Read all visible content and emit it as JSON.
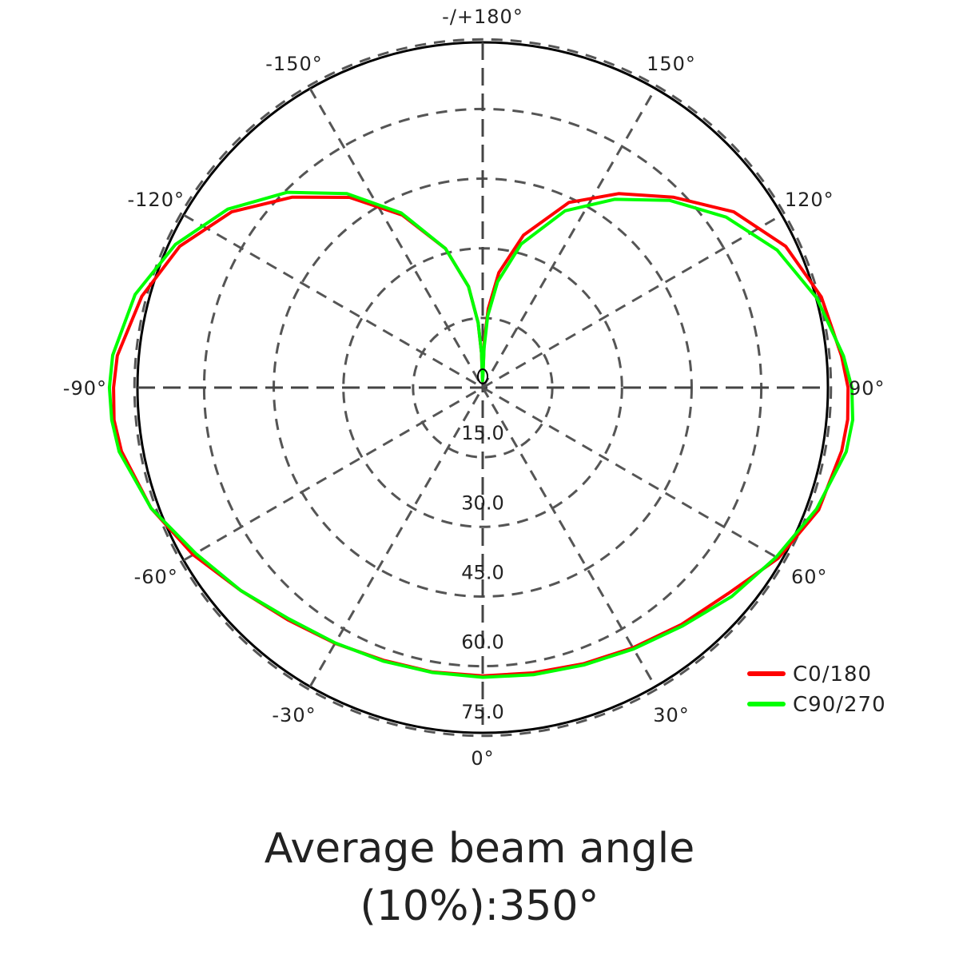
{
  "chart_data": {
    "type": "polar",
    "radial_unit": "",
    "radial_max": 90,
    "radial_ticks": [
      15,
      30,
      45,
      60,
      75
    ],
    "radial_tick_labels": [
      "15.0",
      "30.0",
      "45.0",
      "60.0",
      "75.0"
    ],
    "angle_ticks": [
      {
        "angle": 0,
        "label": "0°"
      },
      {
        "angle": 30,
        "label": "30°"
      },
      {
        "angle": 60,
        "label": "60°"
      },
      {
        "angle": 90,
        "label": "90°"
      },
      {
        "angle": 120,
        "label": "120°"
      },
      {
        "angle": 150,
        "label": "150°"
      },
      {
        "angle": 180,
        "label": "-/+180°"
      },
      {
        "angle": -150,
        "label": "-150°"
      },
      {
        "angle": -120,
        "label": "-120°"
      },
      {
        "angle": -90,
        "label": "-90°"
      },
      {
        "angle": -60,
        "label": "-60°"
      },
      {
        "angle": -30,
        "label": "-30°"
      }
    ],
    "legend_position": "bottom-right",
    "series": [
      {
        "name": "C0/180",
        "color": "#ff0000",
        "points": [
          [
            -179,
            1.5
          ],
          [
            -178,
            7.5
          ],
          [
            -176,
            14
          ],
          [
            -172,
            22
          ],
          [
            -165,
            31
          ],
          [
            -155,
            41
          ],
          [
            -145,
            50
          ],
          [
            -135,
            58
          ],
          [
            -125,
            66
          ],
          [
            -115,
            72
          ],
          [
            -105,
            76
          ],
          [
            -95,
            79
          ],
          [
            -90,
            79.5
          ],
          [
            -85,
            79.7
          ],
          [
            -80,
            79
          ],
          [
            -70,
            76
          ],
          [
            -60,
            72
          ],
          [
            -50,
            68
          ],
          [
            -40,
            65.3
          ],
          [
            -30,
            63.6
          ],
          [
            -20,
            62.5
          ],
          [
            -10,
            62.2
          ],
          [
            0,
            62.1
          ],
          [
            10,
            62.4
          ],
          [
            20,
            63.3
          ],
          [
            30,
            64.7
          ],
          [
            40,
            66.6
          ],
          [
            50,
            69
          ],
          [
            60,
            73.5
          ],
          [
            70,
            77
          ],
          [
            80,
            78.5
          ],
          [
            85,
            78.9
          ],
          [
            90,
            78.7
          ],
          [
            95,
            77.6
          ],
          [
            105,
            75.5
          ],
          [
            115,
            72
          ],
          [
            125,
            66
          ],
          [
            135,
            58
          ],
          [
            145,
            51
          ],
          [
            155,
            44
          ],
          [
            165,
            34
          ],
          [
            172,
            25
          ],
          [
            176,
            17
          ],
          [
            178,
            10
          ],
          [
            179,
            3
          ]
        ]
      },
      {
        "name": "C90/270",
        "color": "#00ff00",
        "points": [
          [
            -179,
            1.5
          ],
          [
            -178,
            7.5
          ],
          [
            -176,
            14
          ],
          [
            -172,
            22
          ],
          [
            -165,
            31
          ],
          [
            -155,
            41.5
          ],
          [
            -145,
            51
          ],
          [
            -135,
            59.5
          ],
          [
            -125,
            67
          ],
          [
            -115,
            73
          ],
          [
            -105,
            77.5
          ],
          [
            -95,
            80
          ],
          [
            -90,
            80.4
          ],
          [
            -85,
            80.2
          ],
          [
            -80,
            79.5
          ],
          [
            -70,
            76
          ],
          [
            -60,
            71.4
          ],
          [
            -50,
            68
          ],
          [
            -40,
            65
          ],
          [
            -30,
            63.5
          ],
          [
            -20,
            62.7
          ],
          [
            -10,
            62.3
          ],
          [
            0,
            62.4
          ],
          [
            10,
            62.8
          ],
          [
            20,
            63.6
          ],
          [
            30,
            65
          ],
          [
            40,
            67
          ],
          [
            50,
            70
          ],
          [
            60,
            73
          ],
          [
            70,
            76.5
          ],
          [
            80,
            79.5
          ],
          [
            85,
            80
          ],
          [
            90,
            79.5
          ],
          [
            95,
            78
          ],
          [
            105,
            74.5
          ],
          [
            115,
            70
          ],
          [
            125,
            64
          ],
          [
            135,
            57
          ],
          [
            145,
            49.5
          ],
          [
            155,
            42
          ],
          [
            165,
            32
          ],
          [
            172,
            23
          ],
          [
            176,
            15.5
          ],
          [
            178,
            8.5
          ],
          [
            179,
            2.5
          ]
        ]
      }
    ]
  },
  "caption": {
    "line1": "Average beam angle",
    "line2": "(10%):350°"
  }
}
